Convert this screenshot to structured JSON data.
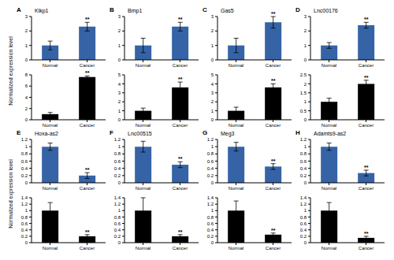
{
  "chart_data": [
    {
      "type": "bar",
      "panel": "A",
      "title": "Klkp1",
      "y_label": "Normalized expression level",
      "categories": [
        "Normal",
        "Cancer"
      ],
      "values": [
        1,
        2.3
      ],
      "errors": [
        0.3,
        0.3
      ],
      "annotations": [
        null,
        "**"
      ],
      "color": "#3563a6",
      "ylim": [
        0,
        3
      ],
      "yticks": [
        0,
        1,
        2,
        3
      ]
    },
    {
      "type": "bar",
      "categories": [
        "Normal",
        "Cancer"
      ],
      "values": [
        1,
        7.6
      ],
      "errors": [
        0.3,
        0.2
      ],
      "annotations": [
        null,
        "**"
      ],
      "color": "#000000",
      "ylim": [
        0,
        8
      ],
      "yticks": [
        0,
        2,
        4,
        6,
        8
      ]
    },
    {
      "type": "bar",
      "panel": "B",
      "title": "Bmp1",
      "categories": [
        "Normal",
        "Cancer"
      ],
      "values": [
        1,
        2.3
      ],
      "errors": [
        0.5,
        0.3
      ],
      "annotations": [
        null,
        "**"
      ],
      "color": "#3563a6",
      "ylim": [
        0,
        3
      ],
      "yticks": [
        0,
        1,
        2,
        3
      ]
    },
    {
      "type": "bar",
      "categories": [
        "Normal",
        "Cancer"
      ],
      "values": [
        1,
        3.6
      ],
      "errors": [
        0.3,
        0.6
      ],
      "annotations": [
        null,
        "**"
      ],
      "color": "#000000",
      "ylim": [
        0,
        5
      ],
      "yticks": [
        0,
        1,
        2,
        3,
        4,
        5
      ]
    },
    {
      "type": "bar",
      "panel": "C",
      "title": "Gas5",
      "categories": [
        "Normal",
        "Cancer"
      ],
      "values": [
        1,
        2.6
      ],
      "errors": [
        0.5,
        0.4
      ],
      "annotations": [
        null,
        "**"
      ],
      "color": "#3563a6",
      "ylim": [
        0,
        3
      ],
      "yticks": [
        0,
        1,
        2,
        3
      ]
    },
    {
      "type": "bar",
      "categories": [
        "Normal",
        "Cancer"
      ],
      "values": [
        1,
        3.6
      ],
      "errors": [
        0.4,
        0.4
      ],
      "annotations": [
        null,
        "**"
      ],
      "color": "#000000",
      "ylim": [
        0,
        5
      ],
      "yticks": [
        0,
        1,
        2,
        3,
        4,
        5
      ]
    },
    {
      "type": "bar",
      "panel": "D",
      "title": "Lnc00176",
      "categories": [
        "Normal",
        "Cancer"
      ],
      "values": [
        1,
        2.4
      ],
      "errors": [
        0.2,
        0.2
      ],
      "annotations": [
        null,
        "**"
      ],
      "color": "#3563a6",
      "ylim": [
        0,
        3
      ],
      "yticks": [
        0,
        1,
        2,
        3
      ]
    },
    {
      "type": "bar",
      "categories": [
        "Normal",
        "Cancer"
      ],
      "values": [
        1,
        2
      ],
      "errors": [
        0.2,
        0.2
      ],
      "annotations": [
        null,
        "**"
      ],
      "color": "#000000",
      "ylim": [
        0,
        2.5
      ],
      "yticks": [
        0,
        0.5,
        1,
        1.5,
        2,
        2.5
      ]
    },
    {
      "type": "bar",
      "panel": "E",
      "title": "Hoxa-as2",
      "y_label": "Normalized expression level",
      "categories": [
        "Normal",
        "Cancer"
      ],
      "values": [
        1,
        0.2
      ],
      "errors": [
        0.1,
        0.08
      ],
      "annotations": [
        null,
        "**"
      ],
      "color": "#3563a6",
      "ylim": [
        0,
        1.2
      ],
      "yticks": [
        0,
        0.2,
        0.4,
        0.6,
        0.8,
        1,
        1.2
      ]
    },
    {
      "type": "bar",
      "categories": [
        "Normal",
        "Cancer"
      ],
      "values": [
        1,
        0.2
      ],
      "errors": [
        0.25,
        0.05
      ],
      "annotations": [
        null,
        "**"
      ],
      "color": "#000000",
      "ylim": [
        0,
        1.4
      ],
      "yticks": [
        0,
        0.2,
        0.4,
        0.6,
        0.8,
        1,
        1.2,
        1.4
      ]
    },
    {
      "type": "bar",
      "panel": "F",
      "title": "Lnc00515",
      "categories": [
        "Normal",
        "Cancer"
      ],
      "values": [
        1,
        0.5
      ],
      "errors": [
        0.15,
        0.08
      ],
      "annotations": [
        null,
        "**"
      ],
      "color": "#3563a6",
      "ylim": [
        0,
        1.2
      ],
      "yticks": [
        0,
        0.2,
        0.4,
        0.6,
        0.8,
        1,
        1.2
      ]
    },
    {
      "type": "bar",
      "categories": [
        "Normal",
        "Cancer"
      ],
      "values": [
        1,
        0.2
      ],
      "errors": [
        0.4,
        0.05
      ],
      "annotations": [
        null,
        "**"
      ],
      "color": "#000000",
      "ylim": [
        0,
        1.4
      ],
      "yticks": [
        0,
        0.2,
        0.4,
        0.6,
        0.8,
        1,
        1.2,
        1.4
      ]
    },
    {
      "type": "bar",
      "panel": "G",
      "title": "Meg3",
      "categories": [
        "Normal",
        "Cancer"
      ],
      "values": [
        1,
        0.45
      ],
      "errors": [
        0.12,
        0.08
      ],
      "annotations": [
        null,
        "**"
      ],
      "color": "#3563a6",
      "ylim": [
        0,
        1.2
      ],
      "yticks": [
        0,
        0.2,
        0.4,
        0.6,
        0.8,
        1,
        1.2
      ]
    },
    {
      "type": "bar",
      "categories": [
        "Normal",
        "Cancer"
      ],
      "values": [
        1,
        0.25
      ],
      "errors": [
        0.3,
        0.05
      ],
      "annotations": [
        null,
        "**"
      ],
      "color": "#000000",
      "ylim": [
        0,
        1.4
      ],
      "yticks": [
        0,
        0.2,
        0.4,
        0.6,
        0.8,
        1,
        1.2,
        1.4
      ]
    },
    {
      "type": "bar",
      "panel": "H",
      "title": "Adamts9-as2",
      "categories": [
        "Normal",
        "Cancer"
      ],
      "values": [
        1,
        0.27
      ],
      "errors": [
        0.1,
        0.08
      ],
      "annotations": [
        null,
        "**"
      ],
      "color": "#3563a6",
      "ylim": [
        0,
        1.2
      ],
      "yticks": [
        0,
        0.2,
        0.4,
        0.6,
        0.8,
        1,
        1.2
      ]
    },
    {
      "type": "bar",
      "categories": [
        "Normal",
        "Cancer"
      ],
      "values": [
        1,
        0.15
      ],
      "errors": [
        0.25,
        0.05
      ],
      "annotations": [
        null,
        "**"
      ],
      "color": "#000000",
      "ylim": [
        0,
        1.4
      ],
      "yticks": [
        0,
        0.2,
        0.4,
        0.6,
        0.8,
        1,
        1.2,
        1.4
      ]
    }
  ]
}
